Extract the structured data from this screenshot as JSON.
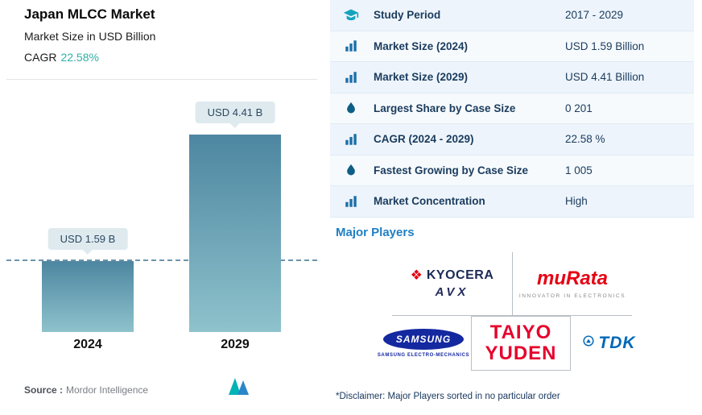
{
  "left_panel": {
    "title": "Japan MLCC Market",
    "subtitle": "Market Size in USD Billion",
    "cagr_label": "CAGR",
    "cagr_value": "22.58%",
    "source_label": "Source :",
    "source_value": "Mordor Intelligence"
  },
  "chart_data": {
    "type": "bar",
    "categories": [
      "2024",
      "2029"
    ],
    "values": [
      1.59,
      4.41
    ],
    "bar_labels": [
      "USD 1.59 B",
      "USD 4.41 B"
    ],
    "title": "Japan MLCC Market",
    "ylabel": "Market Size in USD Billion",
    "unit": "USD Billion",
    "ylim": [
      0,
      4.41
    ],
    "reference_line": 1.59,
    "legend": "none",
    "grid": "off",
    "bar_gradient": [
      "#4d86a0",
      "#8ec2cc"
    ]
  },
  "stats_table": {
    "rows": [
      {
        "icon": "graduation-cap-icon",
        "label": "Study Period",
        "value": "2017 - 2029"
      },
      {
        "icon": "bar-chart-icon",
        "label": "Market Size (2024)",
        "value": "USD 1.59 Billion"
      },
      {
        "icon": "bar-chart-icon",
        "label": "Market Size (2029)",
        "value": "USD 4.41 Billion"
      },
      {
        "icon": "droplet-icon",
        "label": "Largest Share by Case Size",
        "value": "0 201"
      },
      {
        "icon": "bar-chart-icon",
        "label": "CAGR (2024 - 2029)",
        "value": "22.58 %"
      },
      {
        "icon": "droplet-icon",
        "label": "Fastest Growing by Case Size",
        "value": "1 005"
      },
      {
        "icon": "bar-chart-icon",
        "label": "Market Concentration",
        "value": "High"
      }
    ]
  },
  "major_players": {
    "heading": "Major Players",
    "disclaimer": "*Disclaimer: Major Players sorted in no particular order",
    "logos": {
      "kyocera": "KYOCERA",
      "avx": "AVX",
      "murata": "muRata",
      "murata_tagline": "INNOVATOR IN ELECTRONICS",
      "samsung": "SAMSUNG",
      "samsung_sub": "SAMSUNG ELECTRO-MECHANICS",
      "taiyo_line1": "TAIYO",
      "taiyo_line2": "YUDEN",
      "tdk": "TDK"
    }
  },
  "colors": {
    "accent_teal": "#2eb1a6",
    "heading_blue": "#1f7fc5",
    "navy_text": "#1a3b5d",
    "bar_top": "#4d86a0",
    "bar_bottom": "#8ec2cc",
    "callout_bg": "#dfeaef"
  }
}
